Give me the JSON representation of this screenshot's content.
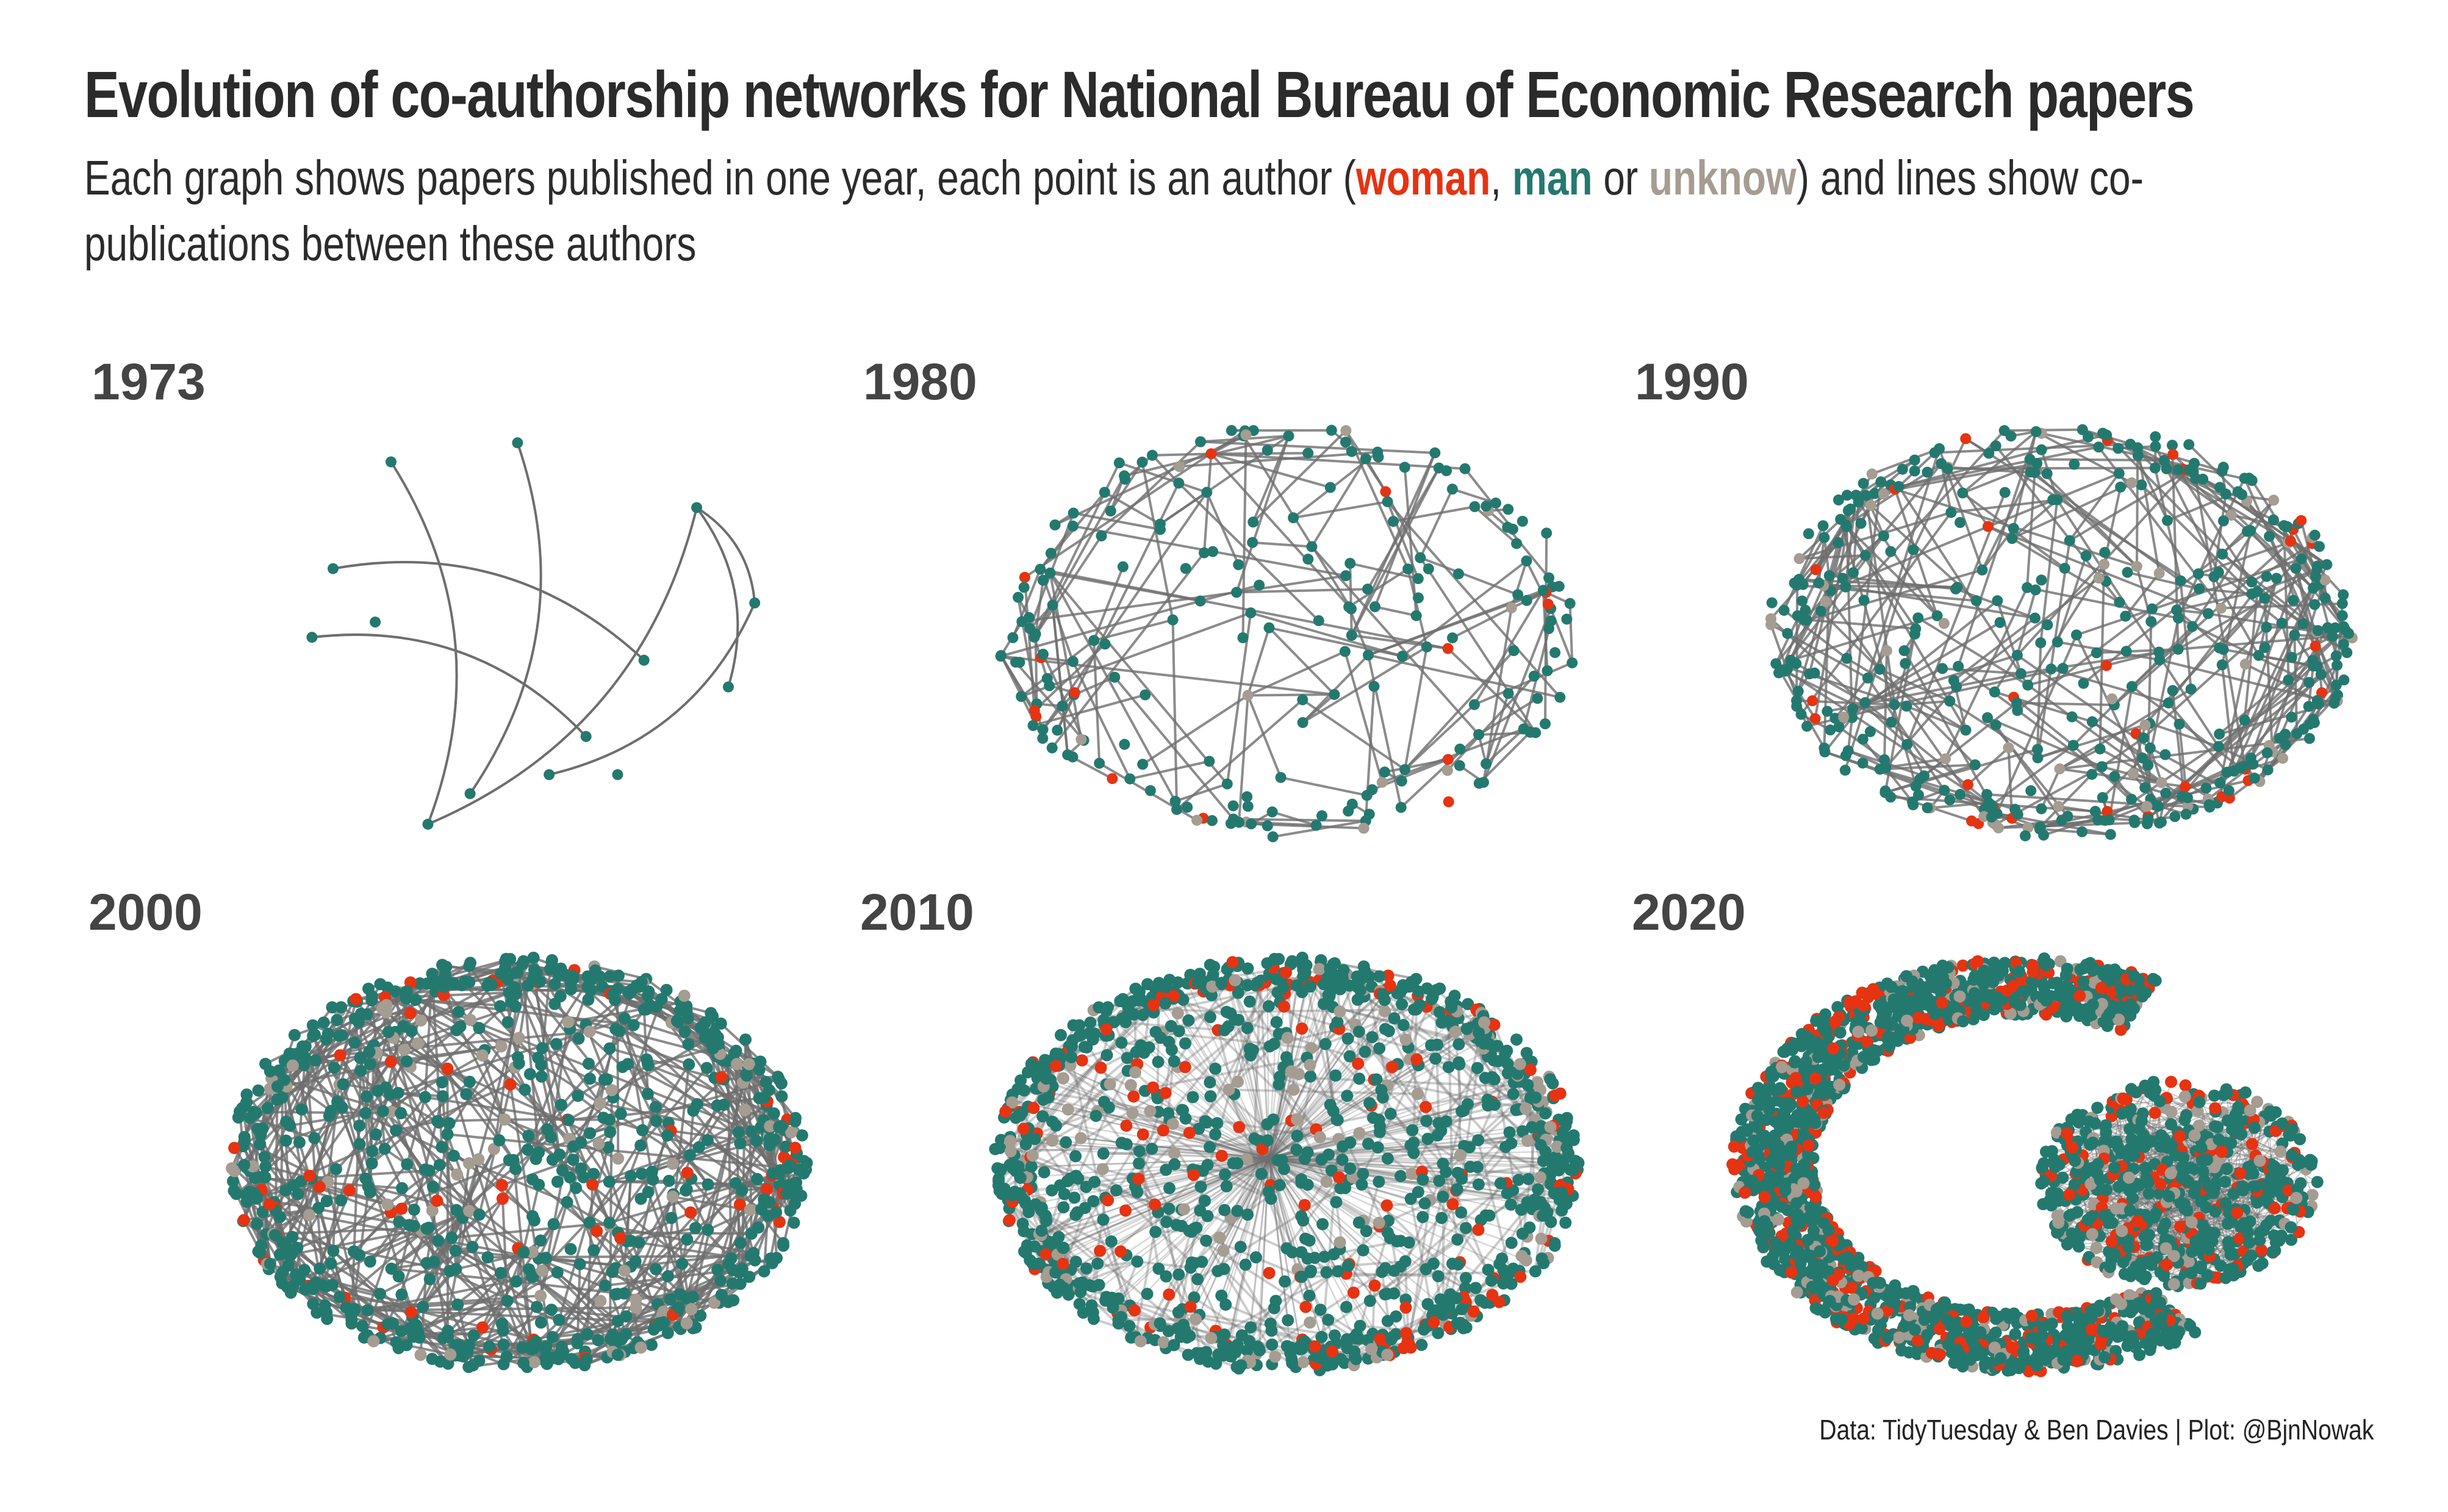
{
  "header": {
    "title": "Evolution of co-authorship networks for National Bureau of Economic Research papers",
    "subtitle_start": "Each graph shows papers published in one year, each point is an author (",
    "woman": "woman",
    "sep1": ", ",
    "man": "man",
    "sep2": " or ",
    "unknow": "unknow",
    "subtitle_end": ") and lines show co-publications between these authors"
  },
  "colors": {
    "woman": "#e63312",
    "man": "#24796f",
    "unknow": "#a59c92",
    "edge": "#6e6e6e"
  },
  "chart_data": [
    {
      "type": "network",
      "title": "1973",
      "authors": {
        "woman": 0,
        "man": 14,
        "unknow": 0
      },
      "layout": "sparse"
    },
    {
      "type": "network",
      "title": "1980",
      "authors": {
        "woman": 14,
        "man": 190,
        "unknow": 12
      },
      "layout": "ellipse"
    },
    {
      "type": "network",
      "title": "1990",
      "authors": {
        "woman": 30,
        "man": 380,
        "unknow": 50
      },
      "layout": "ellipse"
    },
    {
      "type": "network",
      "title": "2000",
      "authors": {
        "woman": 60,
        "man": 700,
        "unknow": 90
      },
      "layout": "ellipse"
    },
    {
      "type": "network",
      "title": "2010",
      "authors": {
        "woman": 140,
        "man": 950,
        "unknow": 140
      },
      "layout": "hub"
    },
    {
      "type": "network",
      "title": "2020",
      "authors": {
        "woman": 420,
        "man": 1700,
        "unknow": 280
      },
      "layout": "crescent"
    }
  ],
  "caption": "Data: TidyTuesday & Ben Davies | Plot: @BjnNowak"
}
